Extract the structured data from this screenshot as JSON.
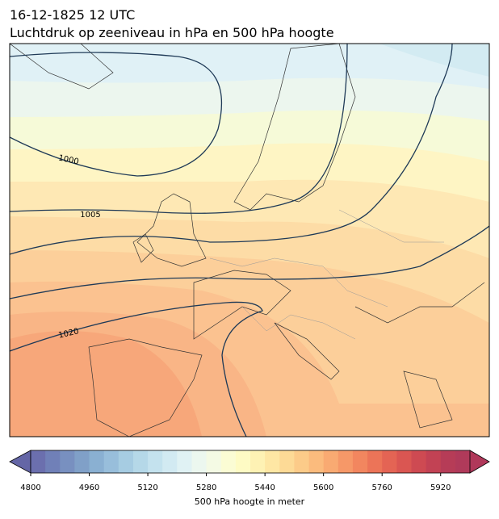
{
  "title": [
    "16-12-1825 12 UTC",
    "Luchtdruk op zeeniveau in hPa en 500 hPa hoogte"
  ],
  "contour_labels": [
    1000,
    1005,
    1020
  ],
  "colorbar": {
    "label": "500 hPa hoogte in meter",
    "lim": [
      4800,
      6000
    ],
    "ticks": [
      4800,
      4960,
      5120,
      5280,
      5440,
      5600,
      5760,
      5920
    ],
    "extend_colors": [
      "#6466a6",
      "#b0385a"
    ],
    "colors": [
      "#6b6fae",
      "#7080b8",
      "#7890c0",
      "#80a0c8",
      "#8ab0d2",
      "#98bedb",
      "#a6cce2",
      "#b5d8e8",
      "#c4e2ee",
      "#d2eaf2",
      "#e0f2f4",
      "#ecf7ef",
      "#f4fae4",
      "#fbfcd4",
      "#fefbc4",
      "#fef2b4",
      "#fee7a4",
      "#fdda96",
      "#fccb89",
      "#fbbb7d",
      "#f9aa72",
      "#f69868",
      "#f2865f",
      "#ec7458",
      "#e46454",
      "#da5652",
      "#ce4a52",
      "#c24254",
      "#b63c57",
      "#b03a5a"
    ]
  }
}
